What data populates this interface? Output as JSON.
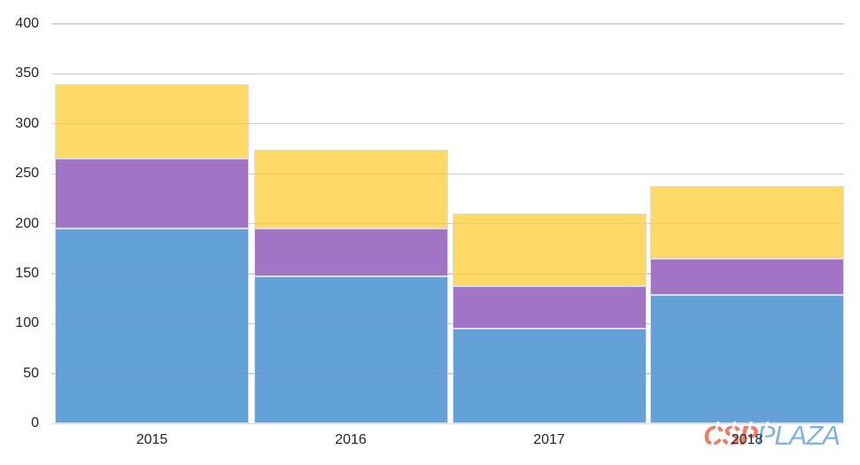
{
  "chart_data": {
    "type": "bar",
    "stacked": true,
    "title": "",
    "xlabel": "",
    "ylabel": "",
    "categories": [
      "2015",
      "2016",
      "2017",
      "2018"
    ],
    "series": [
      {
        "name": "blue-bottom-segment",
        "color": "#64a1d8",
        "values": [
          195,
          147,
          95,
          129
        ]
      },
      {
        "name": "purple-middle-segment",
        "color": "#a174c4",
        "values": [
          70,
          48,
          43,
          36
        ]
      },
      {
        "name": "yellow-top-segment",
        "color": "#ffd966",
        "values": [
          75,
          79,
          72,
          73
        ]
      }
    ],
    "stack_totals": [
      340,
      274,
      210,
      238
    ],
    "ylim": [
      0,
      400
    ],
    "yticks": [
      0,
      50,
      100,
      150,
      200,
      250,
      300,
      350,
      400
    ],
    "grid": true,
    "legend": "none"
  },
  "watermark": {
    "csp_text": "CSP",
    "plaza_text": "PLAZA",
    "csp_color": "#ee7c6a",
    "plaza_color": "#82b1e2"
  },
  "colors": {
    "background": "#ffffff",
    "gridline": "#d9d9d9",
    "axis_text": "#262626",
    "bar_border": "#d8deea"
  }
}
